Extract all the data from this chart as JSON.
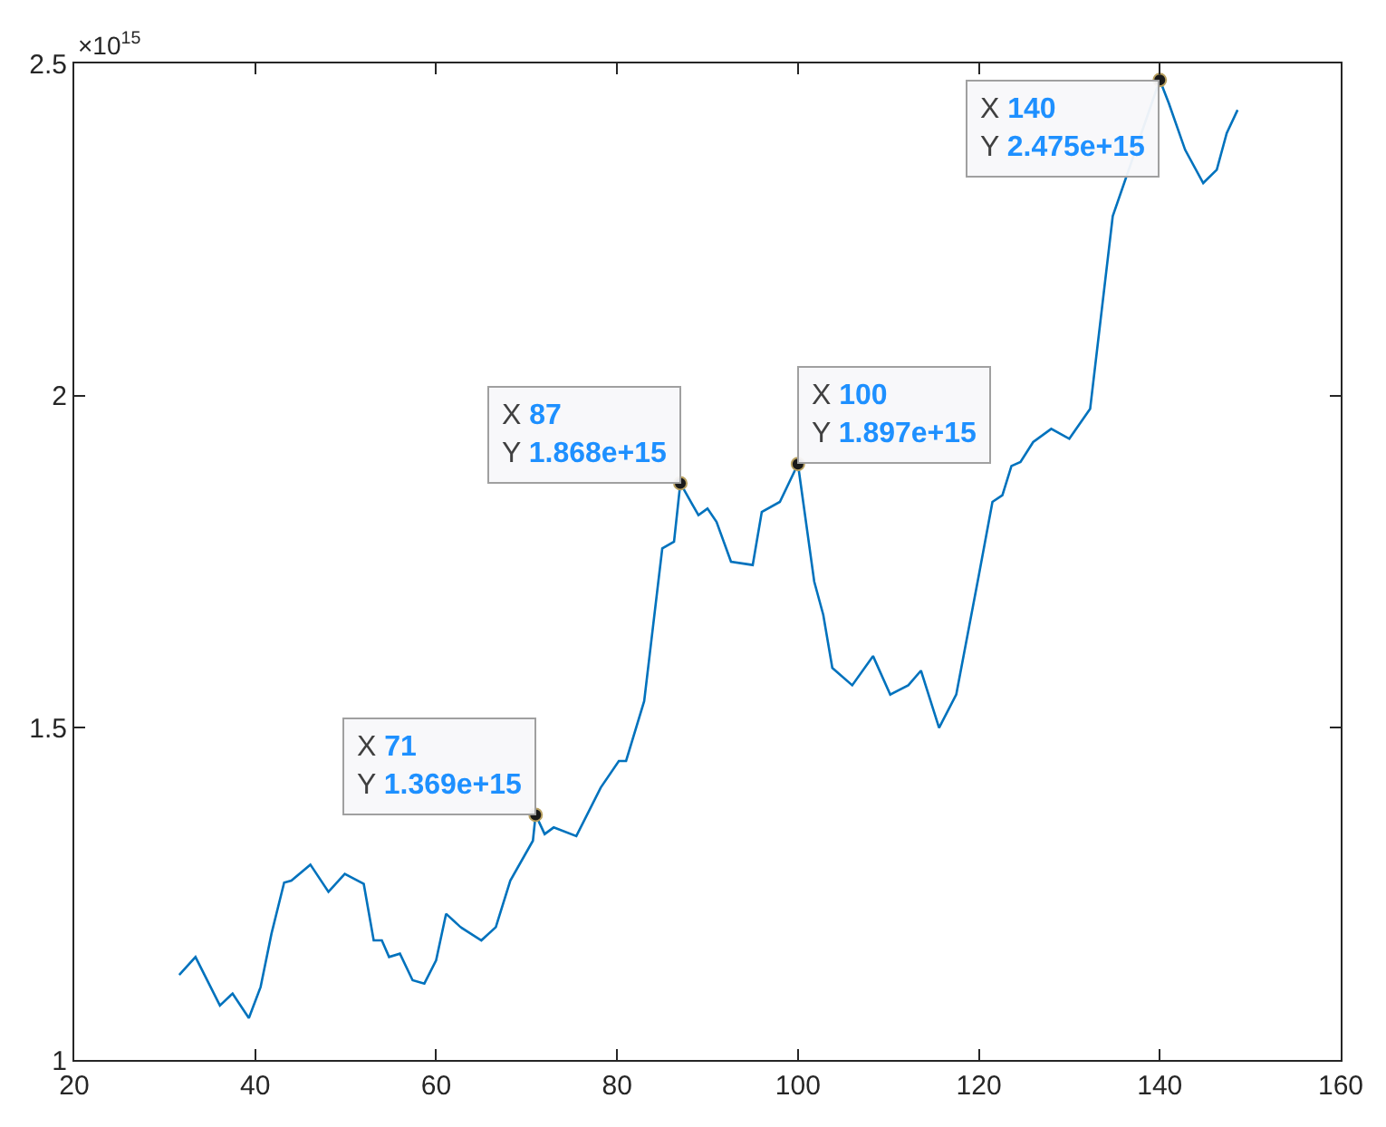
{
  "chart_data": {
    "type": "line",
    "x": [
      31.6,
      33.4,
      36.1,
      37.5,
      39.3,
      40.6,
      41.8,
      43.2,
      44,
      46.1,
      48.1,
      49.9,
      52,
      53.1,
      54,
      54.8,
      56,
      57.4,
      58.7,
      60,
      61.1,
      62.7,
      65,
      66.6,
      68.2,
      70.7,
      71,
      72,
      73,
      75.5,
      78.2,
      80.2,
      81,
      83,
      85,
      86.3,
      87,
      89,
      90,
      91,
      92.6,
      95,
      96,
      98,
      100,
      101.8,
      102.8,
      103.8,
      106,
      108.3,
      110.2,
      112.2,
      113.6,
      115.6,
      117.5,
      120,
      121.5,
      122.6,
      123.6,
      124.6,
      126,
      128,
      130,
      132.3,
      134.8,
      140,
      141,
      142.8,
      144.8,
      146.3,
      147.4,
      148.6
    ],
    "series": [
      {
        "color": "#0072bd",
        "values": [
          1.128,
          1.155,
          1.082,
          1.1,
          1.063,
          1.11,
          1.19,
          1.267,
          1.27,
          1.294,
          1.253,
          1.28,
          1.265,
          1.18,
          1.18,
          1.155,
          1.16,
          1.12,
          1.115,
          1.15,
          1.22,
          1.2,
          1.18,
          1.2,
          1.27,
          1.33,
          1.369,
          1.34,
          1.35,
          1.337,
          1.41,
          1.45,
          1.45,
          1.54,
          1.77,
          1.78,
          1.868,
          1.82,
          1.83,
          1.81,
          1.75,
          1.745,
          1.825,
          1.84,
          1.897,
          1.72,
          1.67,
          1.59,
          1.564,
          1.608,
          1.55,
          1.564,
          1.586,
          1.5,
          1.55,
          1.73,
          1.84,
          1.85,
          1.894,
          1.9,
          1.93,
          1.95,
          1.935,
          1.98,
          2.27,
          2.475,
          2.44,
          2.37,
          2.32,
          2.34,
          2.395,
          2.43
        ]
      }
    ],
    "xlim": [
      20,
      160
    ],
    "xticks": [
      20,
      40,
      60,
      80,
      100,
      120,
      140,
      160
    ],
    "ylim": [
      1,
      2.5
    ],
    "yticks": [
      1,
      1.5,
      2,
      2.5
    ],
    "annotations": [
      "×10$^{15}$",
      {
        "text": "X 71\nY 1.369e+15",
        "x": 71,
        "y": 1.369
      },
      {
        "text": "X 87\nY 1.868e+15",
        "x": 87,
        "y": 1.868
      },
      {
        "text": "X 100\nY 1.897e+15",
        "x": 100,
        "y": 1.897
      },
      {
        "text": "X 140\nY 2.475e+15",
        "x": 140,
        "y": 2.475
      }
    ],
    "marker": "none",
    "line_style": "solid"
  }
}
